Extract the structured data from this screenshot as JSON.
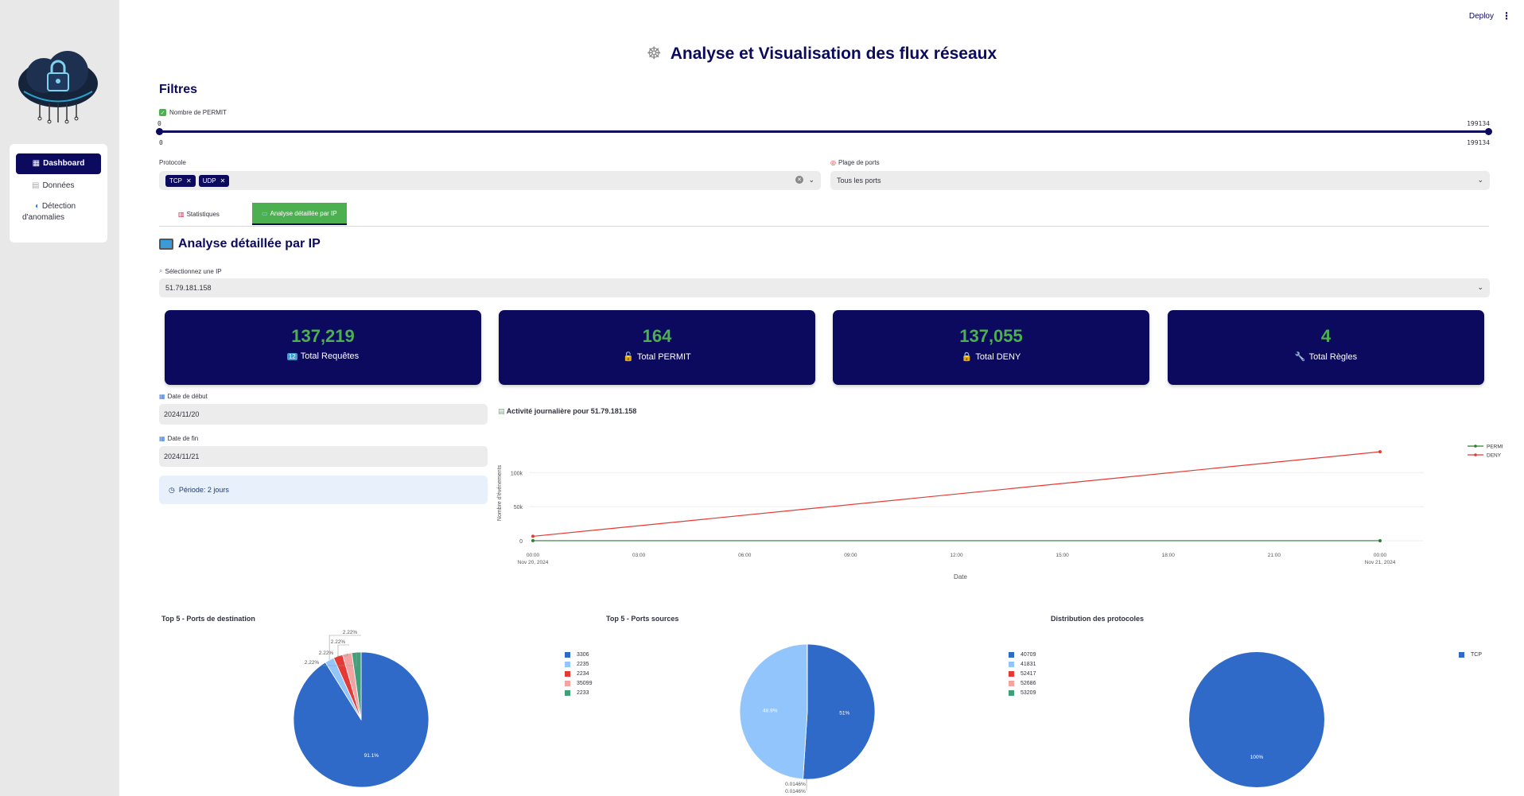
{
  "header": {
    "deploy_label": "Deploy",
    "menu_icon": "⋮",
    "title": "Analyse et Visualisation des flux réseaux",
    "title_icon": "wheel-icon"
  },
  "sidebar": {
    "items": [
      {
        "label": "Dashboard",
        "icon": "grid-icon",
        "active": true
      },
      {
        "label": "Données",
        "icon": "document-icon",
        "active": false
      },
      {
        "label": "Détection d'anomalies",
        "icon": "shield-icon",
        "active": false
      }
    ]
  },
  "filters": {
    "title": "Filtres",
    "permit_slider": {
      "label": "Nombre de PERMIT",
      "checked": true,
      "min": "0",
      "max": "199134",
      "low_value": "0",
      "high_value": "199134"
    },
    "protocol": {
      "label": "Protocole",
      "selected": [
        "TCP",
        "UDP"
      ]
    },
    "ports": {
      "label": "Plage de ports",
      "value": "Tous les ports"
    }
  },
  "tabs": [
    {
      "label": "Statistiques",
      "active": false
    },
    {
      "label": "Analyse détaillée par IP",
      "active": true
    }
  ],
  "ip_section": {
    "title": "Analyse détaillée par IP",
    "select_label": "Sélectionnez une IP",
    "select_value": "51.79.181.158"
  },
  "metrics": [
    {
      "value": "137,219",
      "label": "Total Requêtes",
      "icon": "numbers-icon"
    },
    {
      "value": "164",
      "label": "Total PERMIT",
      "icon": "unlock-icon"
    },
    {
      "value": "137,055",
      "label": "Total DENY",
      "icon": "lock-icon"
    },
    {
      "value": "4",
      "label": "Total Règles",
      "icon": "wrench-icon"
    }
  ],
  "dates": {
    "start_label": "Date de début",
    "start_value": "2024/11/20",
    "end_label": "Date de fin",
    "end_value": "2024/11/21",
    "period": "Période: 2 jours"
  },
  "colors": {
    "navy": "#0c0a5e",
    "green": "#4caf50",
    "permit_line": "#2e7d32",
    "deny_line": "#e53935",
    "pie_blue": "#2f6ac8",
    "pie_light_blue": "#93c5fd",
    "pie_red": "#e53935",
    "pie_pink": "#f4a3a3",
    "pie_teal": "#3fa07a"
  },
  "chart_data": [
    {
      "type": "line",
      "title": "Activité journalière pour 51.79.181.158",
      "xlabel": "Date",
      "ylabel": "Nombre d'événements",
      "x_ticks": [
        "00:00\nNov 20, 2024",
        "03:00",
        "06:00",
        "09:00",
        "12:00",
        "15:00",
        "18:00",
        "21:00",
        "00:00\nNov 21, 2024"
      ],
      "y_ticks": [
        "0",
        "50k",
        "100k"
      ],
      "ylim": [
        0,
        140000
      ],
      "x": [
        "2024-11-20",
        "2024-11-21"
      ],
      "series": [
        {
          "name": "PERMIT",
          "values": [
            100,
            64
          ]
        },
        {
          "name": "DENY",
          "values": [
            6500,
            130555
          ]
        }
      ],
      "legend": "top-right"
    },
    {
      "type": "pie",
      "title": "Top 5 - Ports de destination",
      "categories": [
        "3306",
        "2235",
        "2234",
        "35099",
        "2233"
      ],
      "values": [
        91.1,
        2.22,
        2.22,
        2.22,
        2.22
      ],
      "labels": [
        "91.1%",
        "2.22%",
        "2.22%",
        "2.22%",
        "2.22%"
      ]
    },
    {
      "type": "pie",
      "title": "Top 5 - Ports sources",
      "categories": [
        "40709",
        "41831",
        "52417",
        "52686",
        "53209"
      ],
      "values": [
        51,
        48.9,
        0.0146,
        0.0146,
        0.0146
      ],
      "labels": [
        "51%",
        "48.9%",
        "0.0146%",
        "0.0146%",
        ""
      ]
    },
    {
      "type": "pie",
      "title": "Distribution des protocoles",
      "categories": [
        "TCP"
      ],
      "values": [
        100
      ],
      "labels": [
        "100%"
      ]
    }
  ]
}
